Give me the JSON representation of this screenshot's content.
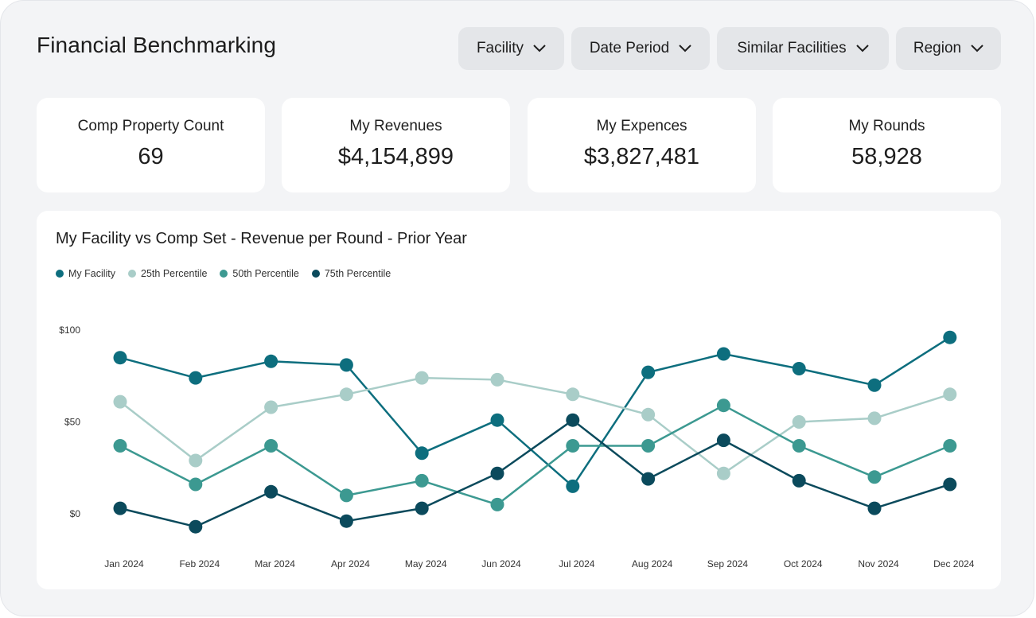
{
  "header": {
    "title": "Financial Benchmarking"
  },
  "filters": [
    {
      "label": "Facility"
    },
    {
      "label": "Date Period"
    },
    {
      "label": "Similar Facilities"
    },
    {
      "label": "Region"
    }
  ],
  "kpis": [
    {
      "label": "Comp Property Count",
      "value": "69"
    },
    {
      "label": "My Revenues",
      "value": "$4,154,899"
    },
    {
      "label": "My Expences",
      "value": "$3,827,481"
    },
    {
      "label": "My Rounds",
      "value": "58,928"
    }
  ],
  "colors": {
    "my_facility": "#0d6e7e",
    "p25": "#a9cdc8",
    "p50": "#3c9991",
    "p75": "#0b4a5c"
  },
  "chart_data": {
    "type": "line",
    "title": "My Facility vs Comp Set - Revenue per Round - Prior Year",
    "categories": [
      "Jan 2024",
      "Feb 2024",
      "Mar 2024",
      "Apr 2024",
      "May 2024",
      "Jun 2024",
      "Jul 2024",
      "Aug 2024",
      "Sep 2024",
      "Oct 2024",
      "Nov 2024",
      "Dec 2024"
    ],
    "y_ticks": [
      "$100",
      "$50",
      "$0"
    ],
    "ylim": [
      0,
      100
    ],
    "legend_position": "top-left",
    "series": [
      {
        "name": "My Facility",
        "color_key": "my_facility",
        "values": [
          85,
          74,
          83,
          81,
          33,
          51,
          15,
          77,
          87,
          79,
          70,
          96
        ]
      },
      {
        "name": "25th Percentile",
        "color_key": "p25",
        "values": [
          61,
          29,
          58,
          65,
          74,
          73,
          65,
          54,
          22,
          50,
          52,
          65
        ]
      },
      {
        "name": "50th Percentile",
        "color_key": "p50",
        "values": [
          37,
          16,
          37,
          10,
          18,
          5,
          37,
          37,
          59,
          37,
          20,
          37
        ]
      },
      {
        "name": "75th Percentile",
        "color_key": "p75",
        "values": [
          3,
          -7,
          12,
          -4,
          3,
          22,
          51,
          19,
          40,
          18,
          3,
          16
        ]
      }
    ]
  }
}
